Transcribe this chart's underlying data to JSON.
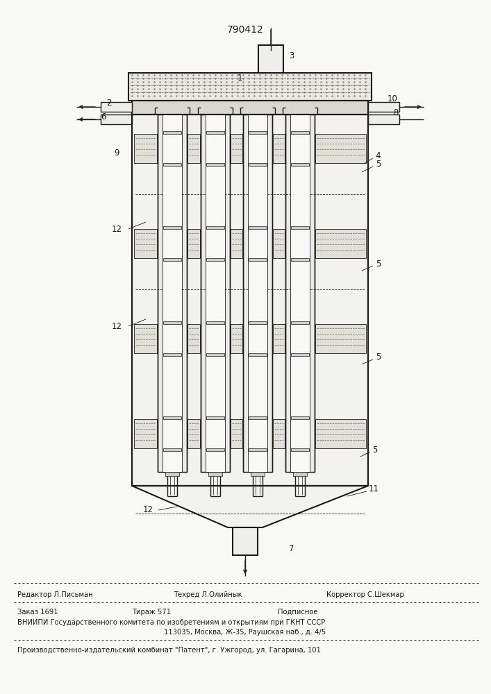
{
  "patent_number": "790412",
  "bg_color": "#f8f8f5",
  "line_color": "#1a1a1a",
  "title_fontsize": 10,
  "footer_fontsize": 7.2,
  "editor_line_left": "Редактор Л.Письман",
  "editor_line_mid": "Техред Л.Олийнык",
  "editor_line_right": "Корректор С.Шекмар",
  "order_line_left": "Заказ 1691",
  "order_line_mid": "Тираж 571",
  "order_line_right": "Подписное",
  "vnipi_line1": "ВНИИПИ Государственного комитета по изобретениям и открытиям при ГКНТ СССР",
  "vnipi_line2": "113035, Москва, Ж-35, Раушская наб., д. 4/5",
  "publisher_line": "Производственно-издательский комбинат \"Патент\", г. Ужгород, ул. Гагарина, 101"
}
